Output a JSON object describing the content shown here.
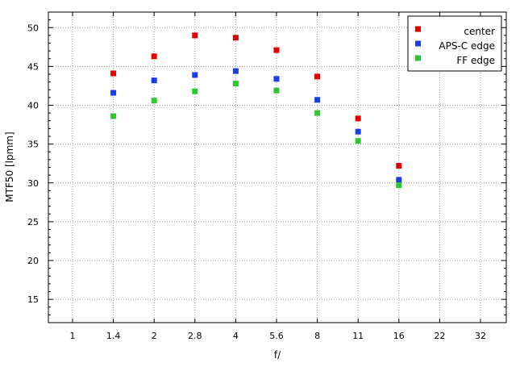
{
  "chart_data": {
    "type": "scatter",
    "title": "",
    "xlabel": "f/",
    "ylabel": "MTF50 [lpmm]",
    "categories": [
      "1",
      "1.4",
      "2",
      "2.8",
      "4",
      "5.6",
      "8",
      "11",
      "16",
      "22",
      "32"
    ],
    "y_ticks": [
      15,
      20,
      25,
      30,
      35,
      40,
      45,
      50
    ],
    "ylim": [
      12,
      52
    ],
    "grid": true,
    "legend_position": "top-right",
    "series": [
      {
        "name": "center",
        "color": "#e00000",
        "x": [
          "1.4",
          "2",
          "2.8",
          "4",
          "5.6",
          "8",
          "11",
          "16"
        ],
        "values": [
          44.1,
          46.3,
          49.0,
          48.7,
          47.1,
          43.7,
          38.3,
          32.2
        ]
      },
      {
        "name": "APS-C edge",
        "color": "#1a3ee6",
        "x": [
          "1.4",
          "2",
          "2.8",
          "4",
          "5.6",
          "8",
          "11",
          "16"
        ],
        "values": [
          41.6,
          43.2,
          43.9,
          44.4,
          43.4,
          40.7,
          36.6,
          30.4
        ]
      },
      {
        "name": "FF edge",
        "color": "#2ec82e",
        "x": [
          "1.4",
          "2",
          "2.8",
          "4",
          "5.6",
          "8",
          "11",
          "16"
        ],
        "values": [
          38.6,
          40.6,
          41.8,
          42.8,
          41.9,
          39.0,
          35.4,
          29.7
        ]
      }
    ]
  }
}
